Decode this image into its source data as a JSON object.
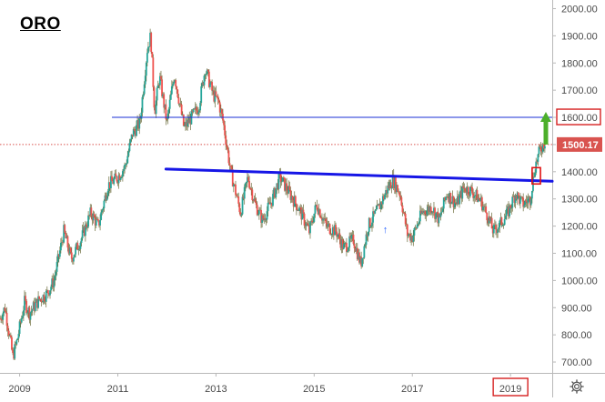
{
  "chart_data": {
    "type": "candlestick",
    "title": "ORO",
    "xlabel": "",
    "ylabel": "",
    "x_ticks": [
      "2009",
      "2011",
      "2013",
      "2015",
      "2017",
      "2019"
    ],
    "x_tick_values": [
      2009,
      2011,
      2013,
      2015,
      2017,
      2019
    ],
    "xlim": [
      2008.6,
      2019.85
    ],
    "y_ticks": [
      700,
      800,
      900,
      1000,
      1100,
      1200,
      1300,
      1400,
      1500,
      1600,
      1700,
      1800,
      1900,
      2000
    ],
    "y_tick_labels": [
      "700.00",
      "800.00",
      "900.00",
      "1000.00",
      "1100.00",
      "1200.00",
      "1300.00",
      "1400.00",
      "1500.00",
      "1600.00",
      "1700.00",
      "1800.00",
      "1900.00",
      "2000.00"
    ],
    "ylim": [
      660,
      2025
    ],
    "axis_position": "right",
    "grid": false,
    "price_path": [
      [
        2008.6,
        860
      ],
      [
        2008.7,
        900
      ],
      [
        2008.8,
        790
      ],
      [
        2008.86,
        720
      ],
      [
        2008.95,
        780
      ],
      [
        2009.1,
        920
      ],
      [
        2009.2,
        880
      ],
      [
        2009.4,
        930
      ],
      [
        2009.55,
        950
      ],
      [
        2009.7,
        1000
      ],
      [
        2009.9,
        1180
      ],
      [
        2010.05,
        1080
      ],
      [
        2010.25,
        1150
      ],
      [
        2010.45,
        1250
      ],
      [
        2010.6,
        1200
      ],
      [
        2010.8,
        1350
      ],
      [
        2011.0,
        1380
      ],
      [
        2011.15,
        1420
      ],
      [
        2011.3,
        1540
      ],
      [
        2011.45,
        1580
      ],
      [
        2011.6,
        1850
      ],
      [
        2011.67,
        1900
      ],
      [
        2011.75,
        1620
      ],
      [
        2011.85,
        1750
      ],
      [
        2012.0,
        1580
      ],
      [
        2012.15,
        1760
      ],
      [
        2012.35,
        1560
      ],
      [
        2012.5,
        1600
      ],
      [
        2012.65,
        1640
      ],
      [
        2012.78,
        1780
      ],
      [
        2012.95,
        1680
      ],
      [
        2013.05,
        1660
      ],
      [
        2013.15,
        1580
      ],
      [
        2013.3,
        1400
      ],
      [
        2013.5,
        1250
      ],
      [
        2013.65,
        1380
      ],
      [
        2013.8,
        1280
      ],
      [
        2013.95,
        1220
      ],
      [
        2014.15,
        1300
      ],
      [
        2014.3,
        1380
      ],
      [
        2014.5,
        1320
      ],
      [
        2014.7,
        1260
      ],
      [
        2014.9,
        1180
      ],
      [
        2015.05,
        1280
      ],
      [
        2015.25,
        1200
      ],
      [
        2015.45,
        1180
      ],
      [
        2015.6,
        1120
      ],
      [
        2015.8,
        1150
      ],
      [
        2015.95,
        1060
      ],
      [
        2016.1,
        1200
      ],
      [
        2016.3,
        1260
      ],
      [
        2016.5,
        1340
      ],
      [
        2016.6,
        1370
      ],
      [
        2016.75,
        1320
      ],
      [
        2016.9,
        1170
      ],
      [
        2017.0,
        1160
      ],
      [
        2017.2,
        1250
      ],
      [
        2017.4,
        1270
      ],
      [
        2017.55,
        1220
      ],
      [
        2017.7,
        1320
      ],
      [
        2017.9,
        1280
      ],
      [
        2018.05,
        1340
      ],
      [
        2018.2,
        1330
      ],
      [
        2018.4,
        1290
      ],
      [
        2018.55,
        1230
      ],
      [
        2018.65,
        1180
      ],
      [
        2018.8,
        1210
      ],
      [
        2018.95,
        1250
      ],
      [
        2019.1,
        1320
      ],
      [
        2019.25,
        1280
      ],
      [
        2019.4,
        1300
      ],
      [
        2019.5,
        1420
      ],
      [
        2019.6,
        1480
      ],
      [
        2019.7,
        1510
      ]
    ],
    "horizontal_levels": [
      {
        "value": 1600,
        "color": "#1a2fd6",
        "style": "solid",
        "x_start": 2010.88,
        "label": "1600.00"
      },
      {
        "value": 1500.17,
        "color": "#d9534f",
        "style": "dotted",
        "label": "1500.17",
        "label_fill": "#d9534f"
      }
    ],
    "trendline": {
      "points": [
        [
          2011.98,
          1410
        ],
        [
          2019.85,
          1365
        ]
      ],
      "color": "#1616e6"
    },
    "highlight_box": {
      "x": [
        2019.44,
        2019.61
      ],
      "y": [
        1355,
        1415
      ],
      "color": "#e01010"
    },
    "annotation_arrow": {
      "x": 2019.72,
      "y_from": 1500,
      "y_to": 1620,
      "color": "#4caf2a"
    },
    "marker": {
      "x": 2016.45,
      "y": 1175,
      "glyph": "↑",
      "color": "#2962ff"
    },
    "boxed_labels": [
      "1600.00",
      "2019"
    ],
    "colors": {
      "up": "#26a69a",
      "down": "#ef5350",
      "line": "#6b6b3a"
    }
  },
  "ui": {
    "settings_icon": "gear-icon"
  }
}
